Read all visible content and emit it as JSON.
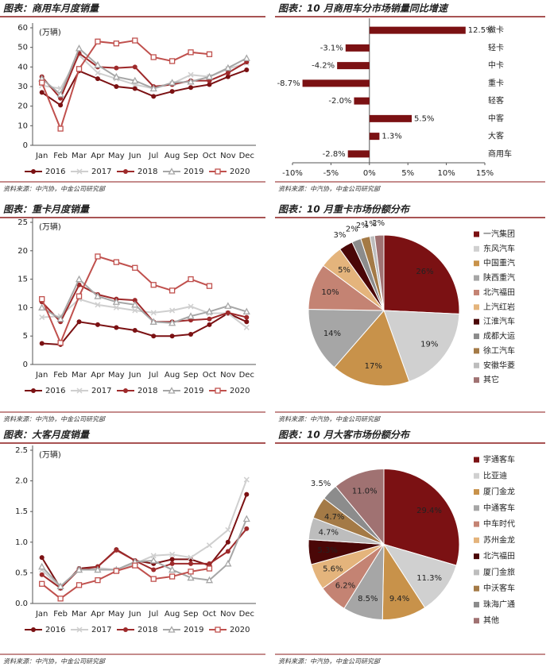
{
  "chart_data": [
    {
      "type": "line",
      "title": "图表：商用车月度销量",
      "ylabel": "(万辆)",
      "categories": [
        "Jan",
        "Feb",
        "Mar",
        "Apr",
        "May",
        "Jun",
        "Jul",
        "Aug",
        "Sep",
        "Oct",
        "Nov",
        "Dec"
      ],
      "ylim": [
        0,
        60
      ],
      "yticks": [
        0,
        10,
        20,
        30,
        40,
        50,
        60
      ],
      "series": [
        {
          "name": "2016",
          "color": "#7b1113",
          "marker": "circle",
          "values": [
            27,
            20.5,
            38,
            34,
            30,
            29,
            25,
            27.5,
            29.5,
            31,
            35,
            38.5
          ]
        },
        {
          "name": "2017",
          "color": "#cfcfcf",
          "marker": "cross",
          "values": [
            30.5,
            29,
            46,
            37,
            34,
            31,
            29,
            31.5,
            36,
            35,
            39,
            42
          ]
        },
        {
          "name": "2018",
          "color": "#9e2a2b",
          "marker": "circle",
          "values": [
            35,
            24,
            47,
            40,
            39.5,
            40,
            30,
            31,
            33,
            33,
            37,
            42.5
          ]
        },
        {
          "name": "2019",
          "color": "#a6a6a6",
          "marker": "triangle",
          "values": [
            34,
            26,
            49.5,
            41,
            35,
            33,
            29,
            32,
            32.5,
            35,
            39.5,
            44.5
          ]
        },
        {
          "name": "2020",
          "color": "#c0504d",
          "marker": "square",
          "values": [
            32,
            8.5,
            39,
            53,
            52,
            53.5,
            45,
            43,
            47.5,
            46.5,
            null,
            null
          ]
        }
      ],
      "source": "资料来源：中汽协，中金公司研究部"
    },
    {
      "type": "hbar",
      "title": "图表：10 月商用车分市场销量同比增速",
      "categories": [
        "微卡",
        "轻卡",
        "中卡",
        "重卡",
        "轻客",
        "中客",
        "大客",
        "商用车"
      ],
      "values": [
        12.5,
        -3.1,
        -4.2,
        -8.7,
        -2.0,
        5.5,
        1.3,
        -2.8
      ],
      "value_labels": [
        "12.5%",
        "-3.1%",
        "-4.2%",
        "-8.7%",
        "-2.0%",
        "5.5%",
        "1.3%",
        "-2.8%"
      ],
      "color": "#7b1113",
      "xlim": [
        -10,
        15
      ],
      "xticks": [
        {
          "value": -10,
          "label": "-10%"
        },
        {
          "value": -5,
          "label": "-5%"
        },
        {
          "value": 0,
          "label": "0%"
        },
        {
          "value": 5,
          "label": "5%"
        },
        {
          "value": 10,
          "label": "10%"
        },
        {
          "value": 15,
          "label": "15%"
        }
      ],
      "source": "资料来源：中汽协，中金公司研究部"
    },
    {
      "type": "line",
      "title": "图表：重卡月度销量",
      "ylabel": "(万辆)",
      "categories": [
        "Jan",
        "Feb",
        "Mar",
        "Apr",
        "May",
        "Jun",
        "Jul",
        "Aug",
        "Sep",
        "Oct",
        "Nov",
        "Dec"
      ],
      "ylim": [
        0,
        25
      ],
      "yticks": [
        0,
        5,
        10,
        15,
        20,
        25
      ],
      "series": [
        {
          "name": "2016",
          "color": "#7b1113",
          "marker": "circle",
          "values": [
            3.7,
            3.5,
            7.5,
            7,
            6.5,
            6,
            5,
            5,
            5.3,
            7,
            9,
            7.5
          ]
        },
        {
          "name": "2017",
          "color": "#cfcfcf",
          "marker": "cross",
          "values": [
            8.3,
            8.5,
            11.5,
            10.5,
            10,
            9.5,
            9.1,
            9.5,
            10.2,
            9,
            9,
            6.5
          ]
        },
        {
          "name": "2018",
          "color": "#9e2a2b",
          "marker": "circle",
          "values": [
            11,
            7.5,
            14,
            12.3,
            11.5,
            11.3,
            7.5,
            7.5,
            7.8,
            8,
            9.1,
            8.3
          ]
        },
        {
          "name": "2019",
          "color": "#a6a6a6",
          "marker": "triangle",
          "values": [
            10,
            8,
            15,
            12,
            11,
            10.5,
            7.5,
            7.3,
            8.5,
            9.3,
            10.3,
            9.3
          ]
        },
        {
          "name": "2020",
          "color": "#c0504d",
          "marker": "square",
          "values": [
            11.5,
            3.8,
            12,
            19,
            18,
            17,
            14,
            13,
            15,
            13.8,
            null,
            null
          ]
        }
      ],
      "source": "资料来源：中汽协，中金公司研究部"
    },
    {
      "type": "pie",
      "title": "图表：10 月重卡市场份额分布",
      "categories": [
        "一汽集团",
        "东风汽车",
        "中国重汽",
        "陕西重汽",
        "北汽福田",
        "上汽红岩",
        "江淮汽车",
        "成都大运",
        "徐工汽车",
        "安徽华菱",
        "其它"
      ],
      "values": [
        26,
        19,
        17,
        14,
        10,
        5,
        3,
        2,
        2,
        1,
        2
      ],
      "value_labels": [
        "26%",
        "19%",
        "17%",
        "14%",
        "10%",
        "5%",
        "3%",
        "2%",
        "2%",
        "1%",
        "2%"
      ],
      "colors": [
        "#7b1113",
        "#d0d0d0",
        "#c8924a",
        "#a6a6a6",
        "#c48373",
        "#e4b47c",
        "#4a0707",
        "#8c8c8c",
        "#a47a46",
        "#bdbdbd",
        "#a07272"
      ],
      "source": "资料来源：中汽协，中金公司研究部"
    },
    {
      "type": "line",
      "title": "图表：大客月度销量",
      "ylabel": "(万辆)",
      "categories": [
        "Jan",
        "Feb",
        "Mar",
        "Apr",
        "May",
        "Jun",
        "Jul",
        "Aug",
        "Sep",
        "Oct",
        "Nov",
        "Dec"
      ],
      "ylim": [
        0,
        2.5
      ],
      "yticks": [
        {
          "value": 0,
          "label": "0.0"
        },
        0.5,
        {
          "value": 1,
          "label": "1.0"
        },
        1.5,
        {
          "value": 2,
          "label": "2.0"
        },
        2.5
      ],
      "series": [
        {
          "name": "2016",
          "color": "#7b1113",
          "marker": "circle",
          "values": [
            0.75,
            0.25,
            0.57,
            0.6,
            0.88,
            0.7,
            0.65,
            0.72,
            0.72,
            0.62,
            1.0,
            1.78
          ]
        },
        {
          "name": "2017",
          "color": "#cfcfcf",
          "marker": "cross",
          "values": [
            0.55,
            0.25,
            0.55,
            0.58,
            0.55,
            0.65,
            0.78,
            0.8,
            0.75,
            0.95,
            1.2,
            2.02
          ]
        },
        {
          "name": "2018",
          "color": "#9e2a2b",
          "marker": "circle",
          "values": [
            0.47,
            0.25,
            0.55,
            0.6,
            0.87,
            0.7,
            0.55,
            0.65,
            0.65,
            0.65,
            0.85,
            1.22
          ]
        },
        {
          "name": "2019",
          "color": "#a6a6a6",
          "marker": "triangle",
          "values": [
            0.6,
            0.28,
            0.55,
            0.55,
            0.55,
            0.68,
            0.7,
            0.55,
            0.42,
            0.38,
            0.65,
            1.38
          ]
        },
        {
          "name": "2020",
          "color": "#c0504d",
          "marker": "square",
          "values": [
            0.32,
            0.08,
            0.3,
            0.38,
            0.53,
            0.62,
            0.4,
            0.44,
            0.52,
            0.57,
            null,
            null
          ]
        }
      ],
      "source": "资料来源：中汽协，中金公司研究部"
    },
    {
      "type": "pie",
      "title": "图表：10 月大客市场份额分布",
      "categories": [
        "宇通客车",
        "比亚迪",
        "厦门金龙",
        "中通客车",
        "中车时代",
        "苏州金龙",
        "北汽福田",
        "厦门金旅",
        "中沃客车",
        "珠海广通",
        "其他"
      ],
      "values": [
        29.4,
        11.3,
        9.4,
        8.5,
        6.2,
        5.6,
        5.3,
        4.7,
        4.7,
        3.5,
        11.0
      ],
      "value_labels": [
        "29.4%",
        "11.3%",
        "9.4%",
        "8.5%",
        "6.2%",
        "5.6%",
        "5.3%",
        "4.7%",
        "4.7%",
        "3.5%",
        "11.0%"
      ],
      "colors": [
        "#7b1113",
        "#d0d0d0",
        "#c8924a",
        "#a6a6a6",
        "#c48373",
        "#e4b47c",
        "#4a0707",
        "#bdbdbd",
        "#a47a46",
        "#8c8c8c",
        "#a07272"
      ],
      "source": "资料来源：中汽协，中金公司研究部"
    }
  ]
}
